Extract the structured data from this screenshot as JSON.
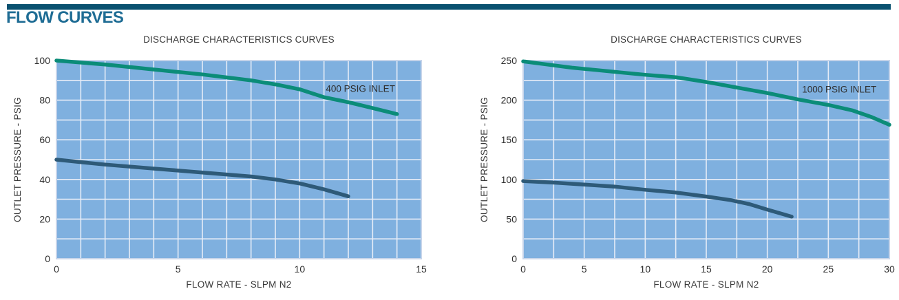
{
  "header": {
    "title": "FLOW CURVES"
  },
  "theme": {
    "accent_bar_color": "#0A5170",
    "heading_color": "#1E6C94",
    "plot_bg": "#7FB0DF",
    "grid_color": "#E6ECF7",
    "plot_border": "#C7D5EA",
    "tick_text_color": "#2E2E2E",
    "series_teal": "#0B8C78",
    "series_blue": "#2E5A78"
  },
  "chart_data": [
    {
      "type": "line",
      "title": "DISCHARGE CHARACTERISTICS CURVES",
      "xlabel": "FLOW RATE - SLPM N2",
      "ylabel": "OUTLET PRESSURE - PSIG",
      "xlim": [
        0,
        15
      ],
      "ylim": [
        0,
        100
      ],
      "x_grid_step": 1,
      "y_grid_step": 10,
      "x_ticks": [
        0,
        5,
        10,
        15
      ],
      "y_ticks": [
        0,
        20,
        40,
        60,
        80,
        100
      ],
      "grid": true,
      "legend": "none",
      "annotation": {
        "text": "400 PSIG INLET",
        "x": 12.5,
        "y": 86
      },
      "series": [
        {
          "name": "400 PSIG INLET",
          "color_key": "series_teal",
          "points": [
            [
              0,
              100
            ],
            [
              2,
              98
            ],
            [
              4,
              95.5
            ],
            [
              6,
              93
            ],
            [
              7,
              91.5
            ],
            [
              8,
              90
            ],
            [
              9,
              88
            ],
            [
              10,
              85.5
            ],
            [
              11,
              81.5
            ],
            [
              12,
              79
            ],
            [
              13,
              76
            ],
            [
              14,
              73
            ]
          ]
        },
        {
          "name": "lower-unlabeled-curve",
          "color_key": "series_blue",
          "points": [
            [
              0,
              50
            ],
            [
              2,
              47.5
            ],
            [
              4,
              45.5
            ],
            [
              6,
              43.5
            ],
            [
              7,
              42.5
            ],
            [
              8,
              41.5
            ],
            [
              9,
              40
            ],
            [
              10,
              38
            ],
            [
              11,
              35
            ],
            [
              12,
              31.5
            ]
          ]
        }
      ]
    },
    {
      "type": "line",
      "title": "DISCHARGE CHARACTERISTICS CURVES",
      "xlabel": "FLOW RATE - SLPM N2",
      "ylabel": "OUTLET PRESSURE - PSIG",
      "xlim": [
        0,
        30
      ],
      "ylim": [
        0,
        250
      ],
      "x_grid_step": 2.5,
      "y_grid_step": 25,
      "x_ticks": [
        0,
        5,
        10,
        15,
        20,
        25,
        30
      ],
      "y_ticks": [
        0,
        50,
        100,
        150,
        200,
        250
      ],
      "grid": true,
      "legend": "none",
      "annotation": {
        "text": "1000 PSIG INLET",
        "x": 25.9,
        "y": 214
      },
      "series": [
        {
          "name": "1000 PSIG INLET",
          "color_key": "series_teal",
          "points": [
            [
              0,
              249
            ],
            [
              2,
              245
            ],
            [
              4,
              241
            ],
            [
              6,
              238
            ],
            [
              8,
              235
            ],
            [
              10,
              232
            ],
            [
              12.5,
              229
            ],
            [
              15,
              223
            ],
            [
              17.5,
              216
            ],
            [
              20,
              209
            ],
            [
              22.5,
              201
            ],
            [
              25,
              194
            ],
            [
              27,
              187
            ],
            [
              28.5,
              179
            ],
            [
              30,
              169
            ]
          ]
        },
        {
          "name": "lower-unlabeled-curve",
          "color_key": "series_blue",
          "points": [
            [
              0,
              98
            ],
            [
              2.5,
              96
            ],
            [
              5,
              93.5
            ],
            [
              7.5,
              91
            ],
            [
              10,
              87
            ],
            [
              12.5,
              83.5
            ],
            [
              15,
              78.5
            ],
            [
              17,
              74
            ],
            [
              18.5,
              69
            ],
            [
              20,
              62
            ],
            [
              22,
              53
            ]
          ]
        }
      ]
    }
  ]
}
